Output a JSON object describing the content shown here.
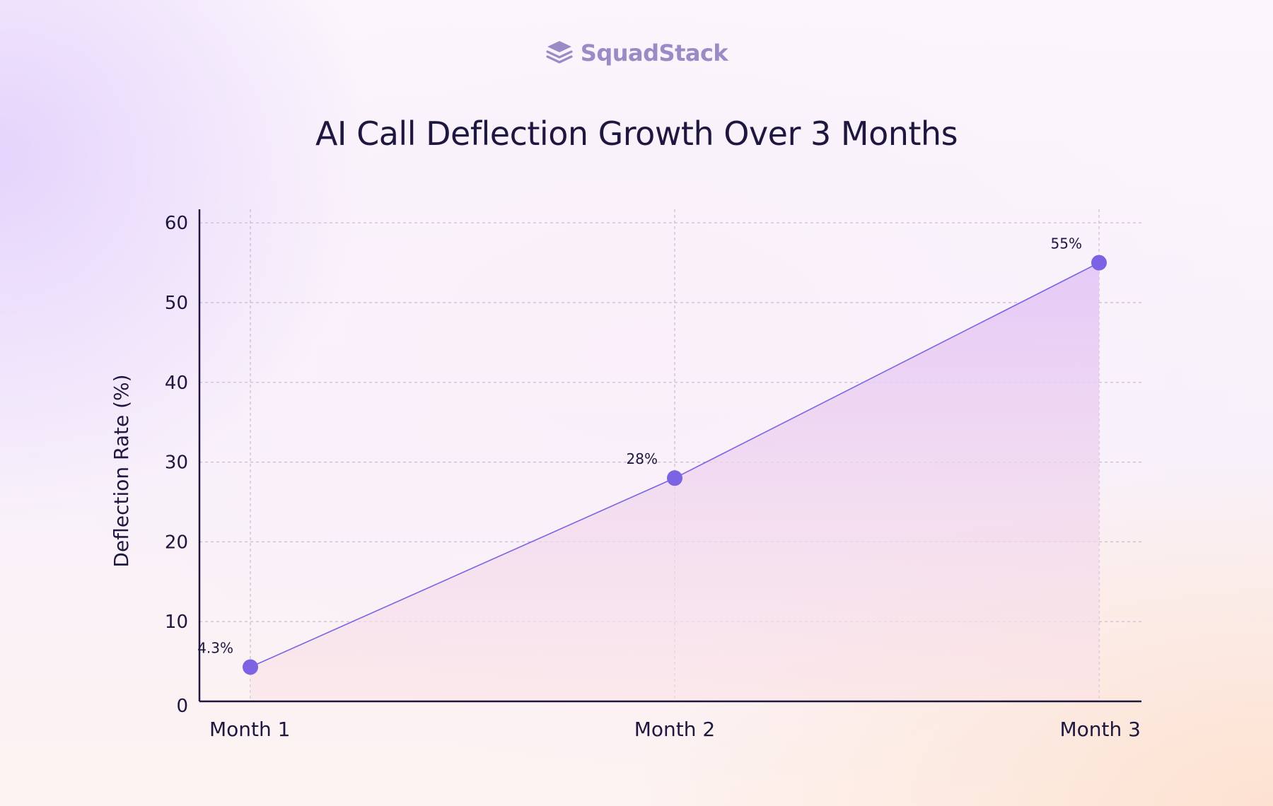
{
  "brand": {
    "name": "SquadStack",
    "icon": "stacked-layers-icon",
    "color": "#9a8bc6"
  },
  "chart_data": {
    "type": "area",
    "title": "AI Call Deflection Growth Over 3 Months",
    "xlabel": "",
    "ylabel": "Deflection Rate (%)",
    "categories": [
      "Month 1",
      "Month 2",
      "Month 3"
    ],
    "series": [
      {
        "values": [
          4.3,
          28,
          55
        ],
        "labels": [
          "4.3%",
          "28%",
          "55%"
        ]
      }
    ],
    "ylim": [
      0,
      60
    ],
    "yticks": [
      0,
      10,
      20,
      30,
      40,
      50,
      60
    ],
    "grid": true,
    "legend": "none",
    "colors": {
      "line": "#7b63e4",
      "marker": "#7b63e4",
      "fill_top": "#e4c8f7",
      "fill_bottom": "#fbe3e6",
      "text": "#1e1840"
    }
  }
}
